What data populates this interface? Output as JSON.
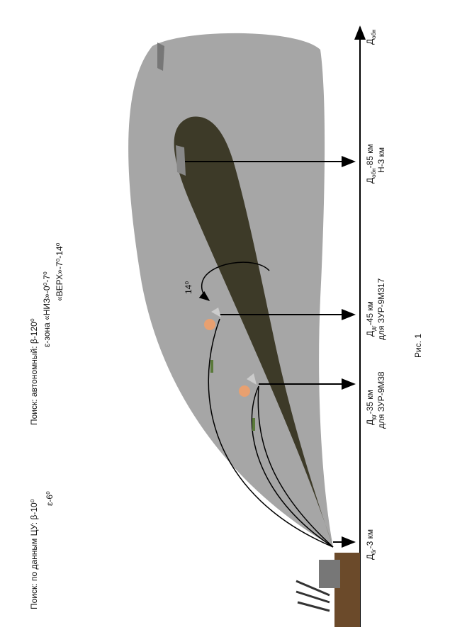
{
  "search_cu": {
    "line1": "Поиск: по данным ЦУ: β-10⁰",
    "line2": "ε-6⁰"
  },
  "search_auto": {
    "line1": "Поиск: автономный: β-120⁰",
    "line2": "ε-зона «НИЗ»-0⁰-7⁰",
    "line3": "«ВЕРХ»-7⁰-14⁰"
  },
  "angle_label": "14⁰",
  "axis_label": {
    "main": "Д",
    "sub": "обн"
  },
  "marks": [
    {
      "main": "Д",
      "sub": "бг",
      "rest": "-3 км"
    },
    {
      "main": "Д",
      "sub": "дг",
      "rest": "-35 км",
      "note": "для ЗУР-9М38"
    },
    {
      "main": "Д",
      "sub": "дг",
      "rest": "-45 км",
      "note": "для ЗУР-9М317"
    },
    {
      "main": "Д",
      "sub": "обн",
      "rest": "-85 км",
      "note": "Н-3 км"
    }
  ],
  "caption": "Рис. 1"
}
